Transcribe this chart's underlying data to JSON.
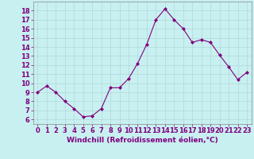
{
  "x": [
    0,
    1,
    2,
    3,
    4,
    5,
    6,
    7,
    8,
    9,
    10,
    11,
    12,
    13,
    14,
    15,
    16,
    17,
    18,
    19,
    20,
    21,
    22,
    23
  ],
  "y": [
    9.0,
    9.7,
    9.0,
    8.0,
    7.2,
    6.3,
    6.4,
    7.2,
    9.5,
    9.5,
    10.5,
    12.2,
    14.3,
    17.0,
    18.2,
    17.0,
    16.0,
    14.5,
    14.8,
    14.5,
    13.1,
    11.8,
    10.4,
    11.2
  ],
  "line_color": "#800080",
  "marker": "D",
  "marker_size": 2.0,
  "bg_color": "#c8f0f0",
  "grid_color": "#b0d8d8",
  "xlabel": "Windchill (Refroidissement éolien,°C)",
  "xlabel_color": "#800080",
  "xlabel_fontsize": 6.5,
  "tick_color": "#800080",
  "tick_fontsize": 6,
  "ylim": [
    5.5,
    19.0
  ],
  "xlim": [
    -0.5,
    23.5
  ],
  "yticks": [
    6,
    7,
    8,
    9,
    10,
    11,
    12,
    13,
    14,
    15,
    16,
    17,
    18
  ],
  "xticks": [
    0,
    1,
    2,
    3,
    4,
    5,
    6,
    7,
    8,
    9,
    10,
    11,
    12,
    13,
    14,
    15,
    16,
    17,
    18,
    19,
    20,
    21,
    22,
    23
  ]
}
